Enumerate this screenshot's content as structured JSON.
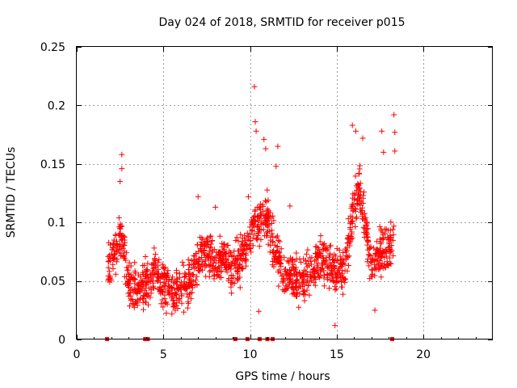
{
  "chart_data": {
    "type": "scatter",
    "title": "Day 024 of 2018, SRMTID for receiver p015",
    "xlabel": "GPS time / hours",
    "ylabel": "SRMTID / TECUs",
    "xlim": [
      0,
      24
    ],
    "ylim": [
      0,
      0.25
    ],
    "xticks": [
      0,
      5,
      10,
      15,
      20
    ],
    "xtick_labels": [
      "0",
      "5",
      "10",
      "15",
      "20"
    ],
    "yticks": [
      0,
      0.05,
      0.1,
      0.15,
      0.2,
      0.25
    ],
    "ytick_labels": [
      "0",
      "0.05",
      "0.1",
      "0.15",
      "0.2",
      "0.25"
    ],
    "grid": true,
    "color": "#ff0000",
    "series": [
      {
        "name": "SRMTID",
        "marker": "plus",
        "trend": [
          {
            "x": 1.8,
            "y": 0.065
          },
          {
            "x": 2.2,
            "y": 0.075
          },
          {
            "x": 2.6,
            "y": 0.09
          },
          {
            "x": 3.0,
            "y": 0.05
          },
          {
            "x": 3.5,
            "y": 0.042
          },
          {
            "x": 4.0,
            "y": 0.045
          },
          {
            "x": 4.5,
            "y": 0.055
          },
          {
            "x": 5.0,
            "y": 0.05
          },
          {
            "x": 5.5,
            "y": 0.04
          },
          {
            "x": 6.0,
            "y": 0.045
          },
          {
            "x": 6.5,
            "y": 0.05
          },
          {
            "x": 7.0,
            "y": 0.065
          },
          {
            "x": 7.5,
            "y": 0.075
          },
          {
            "x": 8.0,
            "y": 0.065
          },
          {
            "x": 8.5,
            "y": 0.07
          },
          {
            "x": 9.0,
            "y": 0.06
          },
          {
            "x": 9.5,
            "y": 0.07
          },
          {
            "x": 10.0,
            "y": 0.09
          },
          {
            "x": 10.5,
            "y": 0.1
          },
          {
            "x": 11.0,
            "y": 0.105
          },
          {
            "x": 11.5,
            "y": 0.07
          },
          {
            "x": 12.0,
            "y": 0.055
          },
          {
            "x": 12.5,
            "y": 0.055
          },
          {
            "x": 13.0,
            "y": 0.05
          },
          {
            "x": 13.5,
            "y": 0.06
          },
          {
            "x": 14.0,
            "y": 0.07
          },
          {
            "x": 14.5,
            "y": 0.065
          },
          {
            "x": 15.0,
            "y": 0.055
          },
          {
            "x": 15.5,
            "y": 0.06
          },
          {
            "x": 16.0,
            "y": 0.115
          },
          {
            "x": 16.3,
            "y": 0.13
          },
          {
            "x": 16.6,
            "y": 0.1
          },
          {
            "x": 17.0,
            "y": 0.06
          },
          {
            "x": 17.5,
            "y": 0.075
          },
          {
            "x": 18.0,
            "y": 0.08
          },
          {
            "x": 18.3,
            "y": 0.09
          }
        ],
        "spread": 0.028,
        "outliers": [
          {
            "x": 2.6,
            "y": 0.158
          },
          {
            "x": 2.6,
            "y": 0.146
          },
          {
            "x": 2.5,
            "y": 0.135
          },
          {
            "x": 10.25,
            "y": 0.216
          },
          {
            "x": 10.3,
            "y": 0.186
          },
          {
            "x": 10.35,
            "y": 0.178
          },
          {
            "x": 10.8,
            "y": 0.171
          },
          {
            "x": 10.9,
            "y": 0.163
          },
          {
            "x": 11.6,
            "y": 0.165
          },
          {
            "x": 11.5,
            "y": 0.148
          },
          {
            "x": 9.9,
            "y": 0.122
          },
          {
            "x": 7.0,
            "y": 0.122
          },
          {
            "x": 8.0,
            "y": 0.113
          },
          {
            "x": 12.3,
            "y": 0.114
          },
          {
            "x": 15.9,
            "y": 0.183
          },
          {
            "x": 16.1,
            "y": 0.178
          },
          {
            "x": 16.5,
            "y": 0.172
          },
          {
            "x": 17.6,
            "y": 0.178
          },
          {
            "x": 17.7,
            "y": 0.16
          },
          {
            "x": 18.3,
            "y": 0.192
          },
          {
            "x": 18.35,
            "y": 0.177
          },
          {
            "x": 18.35,
            "y": 0.161
          },
          {
            "x": 14.9,
            "y": 0.012
          },
          {
            "x": 10.5,
            "y": 0.024
          },
          {
            "x": 17.2,
            "y": 0.025
          }
        ]
      }
    ],
    "flag_markers": [
      1.75,
      3.95,
      4.1,
      9.15,
      9.85,
      10.55,
      11.0,
      11.3,
      18.2
    ]
  }
}
